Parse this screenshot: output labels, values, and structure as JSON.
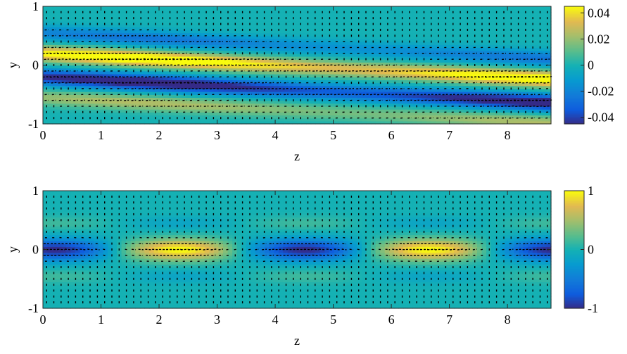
{
  "chart_data": [
    {
      "type": "heatmap",
      "xlabel": "z",
      "ylabel": "y",
      "xlim": [
        0,
        8.75
      ],
      "ylim": [
        -1,
        1
      ],
      "xticks": [
        0,
        1,
        2,
        3,
        4,
        5,
        6,
        7,
        8
      ],
      "yticks": [
        -1,
        0,
        1
      ],
      "colorbar": {
        "clim": [
          -0.045,
          0.045
        ],
        "ticks": [
          0.04,
          0.02,
          0,
          -0.02,
          -0.04
        ],
        "tick_labels": [
          "0.04",
          "0.02",
          "0",
          "-0.02",
          "-0.04"
        ]
      },
      "colormap": "parula",
      "pattern": {
        "bands": [
          {
            "center_y": 0.2,
            "sign": 1,
            "amplitude": 0.045
          },
          {
            "center_y": -0.2,
            "sign": -1,
            "amplitude": 0.045
          },
          {
            "center_y": 0.55,
            "sign": -1,
            "amplitude": 0.02
          },
          {
            "center_y": -0.55,
            "sign": 1,
            "amplitude": 0.02
          }
        ],
        "tilt": -0.05,
        "wavelength_z": 7.0,
        "overlay": "velocity arrows"
      }
    },
    {
      "type": "heatmap",
      "xlabel": "z",
      "ylabel": "y",
      "xlim": [
        0,
        8.75
      ],
      "ylim": [
        -1,
        1
      ],
      "xticks": [
        0,
        1,
        2,
        3,
        4,
        5,
        6,
        7,
        8
      ],
      "yticks": [
        -1,
        0,
        1
      ],
      "colorbar": {
        "clim": [
          -1,
          1
        ],
        "ticks": [
          1,
          0,
          -1
        ],
        "tick_labels": [
          "1",
          "0",
          "-1"
        ]
      },
      "colormap": "parula",
      "pattern": {
        "center_y": 0,
        "wavelength_z": 4.3,
        "phase_z": 0.1,
        "min_at_z": [
          0.2,
          4.4,
          8.7
        ],
        "max_at_z": [
          2.1,
          6.3
        ],
        "overlay": "velocity arrows"
      }
    }
  ]
}
